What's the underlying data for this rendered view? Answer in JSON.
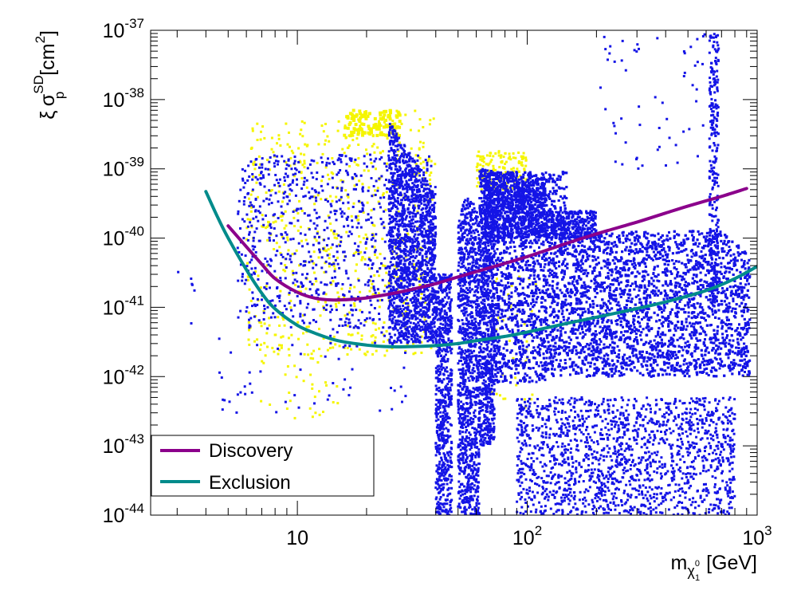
{
  "chart_data": {
    "type": "scatter",
    "title": "",
    "xlabel": "m_{χ1^0} [GeV]",
    "xlabel_parts": {
      "m": "m",
      "chi": "χ",
      "chi_sub": "1",
      "chi_sup": "0",
      "unit": "[GeV]"
    },
    "ylabel": "ξ σ_p^SD [cm²]",
    "ylabel_parts": {
      "xi": "ξ",
      "sigma": "σ",
      "sigma_sub": "p",
      "sigma_sup": "SD",
      "unit_open": "[cm",
      "unit_sup": "2",
      "unit_close": "]"
    },
    "x_scale": "log",
    "y_scale": "log",
    "xlim": [
      2.3,
      1000
    ],
    "ylim": [
      1e-44,
      1e-37
    ],
    "grid": false,
    "x_ticks": [
      {
        "value": 10,
        "label": "10",
        "exp": ""
      },
      {
        "value": 100,
        "label": "10",
        "exp": "2"
      },
      {
        "value": 1000,
        "label": "10",
        "exp": "3"
      }
    ],
    "y_ticks": [
      {
        "value": 1e-44,
        "label": "10",
        "exp": "-44"
      },
      {
        "value": 1e-43,
        "label": "10",
        "exp": "-43"
      },
      {
        "value": 1e-42,
        "label": "10",
        "exp": "-42"
      },
      {
        "value": 1e-41,
        "label": "10",
        "exp": "-41"
      },
      {
        "value": 1e-40,
        "label": "10",
        "exp": "-40"
      },
      {
        "value": 1e-39,
        "label": "10",
        "exp": "-39"
      },
      {
        "value": 1e-38,
        "label": "10",
        "exp": "-38"
      },
      {
        "value": 1e-37,
        "label": "10",
        "exp": "-37"
      }
    ],
    "legend": {
      "placement": "bottom-left",
      "entries": [
        {
          "name": "Discovery",
          "color": "#8b008b"
        },
        {
          "name": "Exclusion",
          "color": "#008b8b"
        }
      ]
    },
    "series": [
      {
        "name": "Discovery",
        "kind": "line",
        "color": "#8b008b",
        "x": [
          5,
          6,
          7,
          8,
          10,
          12,
          14,
          17,
          20,
          25,
          30,
          40,
          50,
          70,
          100,
          150,
          200,
          300,
          400,
          500,
          700,
          900
        ],
        "y": [
          1.5e-40,
          7.5e-41,
          4.2e-41,
          2.6e-41,
          1.65e-41,
          1.35e-41,
          1.28e-41,
          1.3e-41,
          1.37e-41,
          1.55e-41,
          1.75e-41,
          2.2e-41,
          2.75e-41,
          3.8e-41,
          5.4e-41,
          8.5e-41,
          1.15e-40,
          1.7e-40,
          2.3e-40,
          2.9e-40,
          4e-40,
          5.2e-40
        ]
      },
      {
        "name": "Exclusion",
        "kind": "line",
        "color": "#008b8b",
        "x": [
          4,
          4.5,
          5,
          6,
          7,
          8,
          10,
          12,
          15,
          20,
          25,
          30,
          40,
          50,
          60,
          80,
          100,
          150,
          200,
          300,
          400,
          600,
          800,
          1000
        ],
        "y": [
          4.7e-40,
          2e-40,
          1e-40,
          3.5e-41,
          1.6e-41,
          9.5e-42,
          5.5e-42,
          4.2e-42,
          3.3e-42,
          2.85e-42,
          2.7e-42,
          2.7e-42,
          2.8e-42,
          3e-42,
          3.3e-42,
          3.8e-42,
          4.4e-42,
          5.9e-42,
          7.2e-42,
          9.6e-42,
          1.2e-41,
          1.75e-41,
          2.6e-41,
          3.9e-41
        ]
      },
      {
        "name": "Model points (blue)",
        "kind": "scatter",
        "color": "#1414e6",
        "description": "dense scan points: sparse cloud 5-40 GeV, funnel ~40-47 GeV, funnel ~50-62 GeV, dense region 65-950 GeV, vertical spike near 650 GeV",
        "regions": [
          {
            "x": [
              5,
              40
            ],
            "y": [
              3e-43,
              1.6e-39
            ]
          },
          {
            "x": [
              25,
              40
            ],
            "y": [
              3e-42,
              7e-39
            ]
          },
          {
            "x": [
              40,
              47
            ],
            "y": [
              1e-44,
              2e-41
            ]
          },
          {
            "x": [
              50,
              62
            ],
            "y": [
              1e-44,
              4e-40
            ]
          },
          {
            "x": [
              65,
              950
            ],
            "y": [
              1e-44,
              1e-39
            ]
          },
          {
            "x": [
              600,
              680
            ],
            "y": [
              1e-42,
              9e-38
            ]
          }
        ]
      },
      {
        "name": "Model points (yellow)",
        "kind": "scatter",
        "color": "#f5f500",
        "description": "points partly hidden behind blue, mostly upper edges of 5-40 GeV cloud and 65-110 GeV",
        "regions": [
          {
            "x": [
              5,
              40
            ],
            "y": [
              2e-43,
              7e-39
            ]
          },
          {
            "x": [
              60,
              110
            ],
            "y": [
              3e-43,
              2e-39
            ]
          }
        ]
      }
    ]
  }
}
